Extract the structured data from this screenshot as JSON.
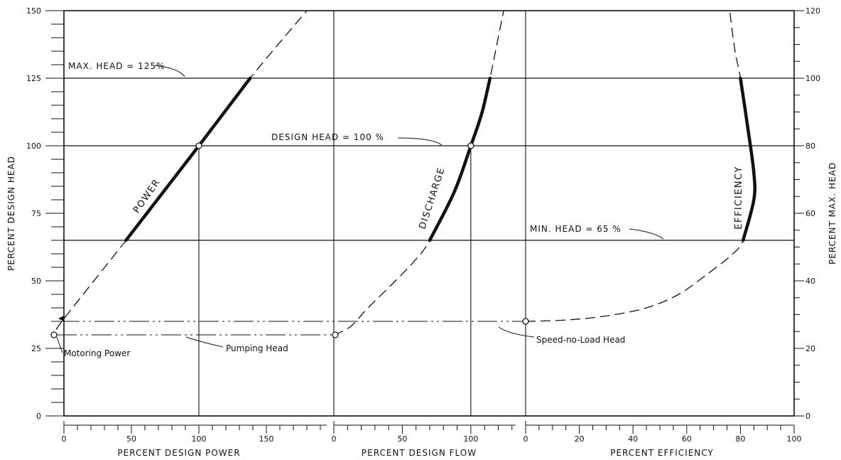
{
  "chart_data": {
    "type": "line",
    "left_axis": {
      "label": "PERCENT DESIGN HEAD",
      "range": [
        0,
        150
      ],
      "ticks": [
        0,
        25,
        50,
        75,
        100,
        125,
        150
      ]
    },
    "right_axis": {
      "label": "PERCENT MAX. HEAD",
      "range": [
        0,
        120
      ],
      "ticks": [
        0,
        20,
        40,
        60,
        80,
        100,
        120
      ]
    },
    "bottom_axes": [
      {
        "label": "PERCENT DESIGN POWER",
        "range": [
          0,
          200
        ],
        "ticks": [
          0,
          50,
          100,
          150
        ]
      },
      {
        "label": "PERCENT DESIGN FLOW",
        "range": [
          0,
          140
        ],
        "ticks": [
          0,
          50,
          100
        ]
      },
      {
        "label": "PERCENT EFFICIENCY",
        "range": [
          0,
          100
        ],
        "ticks": [
          0,
          20,
          40,
          60,
          80,
          100
        ]
      }
    ],
    "series": [
      {
        "name": "POWER",
        "x_axis": "PERCENT DESIGN POWER",
        "points": [
          [
            -5,
            32
          ],
          [
            0,
            36
          ],
          [
            46,
            65
          ],
          [
            100,
            100
          ],
          [
            138,
            125
          ],
          [
            180,
            150
          ]
        ],
        "operating_range": [
          65,
          125
        ]
      },
      {
        "name": "DISCHARGE",
        "x_axis": "PERCENT DESIGN FLOW",
        "points": [
          [
            0,
            30
          ],
          [
            12,
            33
          ],
          [
            25,
            40
          ],
          [
            45,
            50
          ],
          [
            60,
            58
          ],
          [
            70,
            65
          ],
          [
            88,
            83
          ],
          [
            100,
            100
          ],
          [
            108,
            112
          ],
          [
            114,
            125
          ],
          [
            120,
            140
          ],
          [
            124,
            150
          ]
        ],
        "operating_range": [
          65,
          125
        ]
      },
      {
        "name": "EFFICIENCY",
        "x_axis": "PERCENT EFFICIENCY",
        "points": [
          [
            0,
            35
          ],
          [
            15,
            35.5
          ],
          [
            30,
            37
          ],
          [
            45,
            40
          ],
          [
            57,
            45
          ],
          [
            67,
            52
          ],
          [
            76,
            59
          ],
          [
            81,
            65
          ],
          [
            85,
            80
          ],
          [
            85,
            90
          ],
          [
            83,
            105
          ],
          [
            80,
            125
          ],
          [
            78,
            135
          ],
          [
            76,
            150
          ]
        ],
        "operating_range": [
          65,
          125
        ]
      }
    ],
    "reference_lines": [
      {
        "label": "MAX. HEAD = 125%",
        "value": 125
      },
      {
        "label": "DESIGN HEAD = 100 %",
        "value": 100
      },
      {
        "label": "MIN. HEAD = 65 %",
        "value": 65
      }
    ],
    "annotations": [
      {
        "label": "Speed-no-Load Head",
        "value": 35
      },
      {
        "label": "Pumping Head",
        "value": 30
      },
      {
        "label": "Motoring Power",
        "value": 30
      }
    ]
  },
  "colors": {
    "ink": "#111111",
    "background": "#ffffff"
  }
}
